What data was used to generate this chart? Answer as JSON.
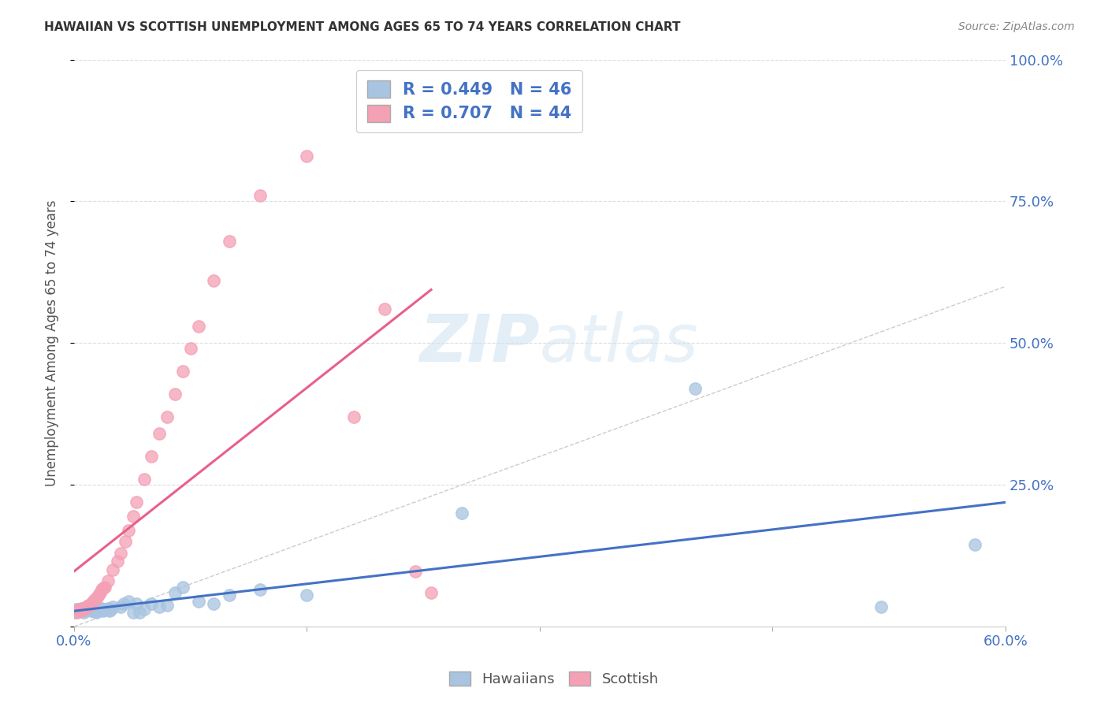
{
  "title": "HAWAIIAN VS SCOTTISH UNEMPLOYMENT AMONG AGES 65 TO 74 YEARS CORRELATION CHART",
  "source": "Source: ZipAtlas.com",
  "ylabel": "Unemployment Among Ages 65 to 74 years",
  "xlim": [
    0.0,
    0.6
  ],
  "ylim": [
    0.0,
    1.0
  ],
  "yticks": [
    0.0,
    0.25,
    0.5,
    0.75,
    1.0
  ],
  "ytick_labels_right": [
    "",
    "25.0%",
    "50.0%",
    "75.0%",
    "100.0%"
  ],
  "xticks": [
    0.0,
    0.15,
    0.3,
    0.45,
    0.6
  ],
  "xtick_labels": [
    "0.0%",
    "",
    "",
    "",
    "60.0%"
  ],
  "hawaiian_R": 0.449,
  "hawaiian_N": 46,
  "scottish_R": 0.707,
  "scottish_N": 44,
  "hawaiian_color": "#a8c4e0",
  "scottish_color": "#f4a0b5",
  "hawaiian_line_color": "#4472C4",
  "scottish_line_color": "#e8608a",
  "trend_line_color": "#c8c8c8",
  "background_color": "#ffffff",
  "hawaiian_x": [
    0.001,
    0.002,
    0.003,
    0.004,
    0.005,
    0.006,
    0.007,
    0.008,
    0.009,
    0.01,
    0.011,
    0.012,
    0.013,
    0.014,
    0.015,
    0.016,
    0.017,
    0.018,
    0.019,
    0.02,
    0.021,
    0.022,
    0.023,
    0.024,
    0.025,
    0.03,
    0.032,
    0.035,
    0.038,
    0.04,
    0.042,
    0.045,
    0.05,
    0.055,
    0.06,
    0.065,
    0.07,
    0.08,
    0.09,
    0.1,
    0.12,
    0.15,
    0.25,
    0.4,
    0.52,
    0.58
  ],
  "hawaiian_y": [
    0.03,
    0.025,
    0.03,
    0.028,
    0.032,
    0.025,
    0.028,
    0.03,
    0.032,
    0.03,
    0.028,
    0.033,
    0.028,
    0.025,
    0.03,
    0.028,
    0.03,
    0.032,
    0.028,
    0.03,
    0.03,
    0.032,
    0.028,
    0.03,
    0.035,
    0.035,
    0.04,
    0.045,
    0.025,
    0.04,
    0.025,
    0.03,
    0.04,
    0.035,
    0.038,
    0.06,
    0.07,
    0.045,
    0.04,
    0.055,
    0.065,
    0.055,
    0.2,
    0.42,
    0.035,
    0.145
  ],
  "scottish_x": [
    0.001,
    0.002,
    0.003,
    0.004,
    0.005,
    0.006,
    0.007,
    0.008,
    0.009,
    0.01,
    0.011,
    0.012,
    0.013,
    0.014,
    0.015,
    0.016,
    0.017,
    0.018,
    0.019,
    0.02,
    0.022,
    0.025,
    0.028,
    0.03,
    0.033,
    0.035,
    0.038,
    0.04,
    0.045,
    0.05,
    0.055,
    0.06,
    0.065,
    0.07,
    0.075,
    0.08,
    0.09,
    0.1,
    0.12,
    0.15,
    0.18,
    0.2,
    0.22,
    0.23
  ],
  "scottish_y": [
    0.025,
    0.028,
    0.03,
    0.028,
    0.032,
    0.03,
    0.033,
    0.035,
    0.038,
    0.038,
    0.04,
    0.045,
    0.048,
    0.05,
    0.052,
    0.055,
    0.06,
    0.065,
    0.068,
    0.07,
    0.08,
    0.1,
    0.115,
    0.13,
    0.15,
    0.17,
    0.195,
    0.22,
    0.26,
    0.3,
    0.34,
    0.37,
    0.41,
    0.45,
    0.49,
    0.53,
    0.61,
    0.68,
    0.76,
    0.83,
    0.37,
    0.56,
    0.098,
    0.06
  ]
}
